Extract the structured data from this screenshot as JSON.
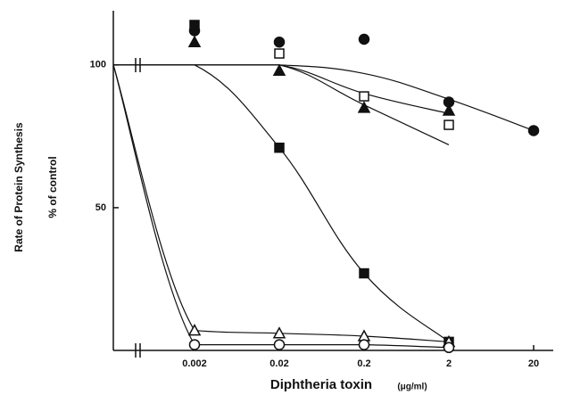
{
  "chart_data": {
    "type": "scatter",
    "y_label": "Rate of Protein Synthesis",
    "y_label_2": "% of control",
    "x_label": "Diphtheria toxin",
    "x_unit": "(μg/ml)",
    "categories": [
      null,
      "0.002",
      "0.02",
      "0.2",
      "2",
      "20"
    ],
    "ylim": [
      0,
      119
    ],
    "yticks": [
      50,
      100
    ],
    "color": "#111111",
    "series": [
      {
        "marker": "circle",
        "filled": true,
        "values": [
          null,
          112,
          108,
          109,
          87,
          77
        ]
      },
      {
        "marker": "triangle",
        "filled": true,
        "values": [
          null,
          108,
          98,
          85,
          84,
          null
        ]
      },
      {
        "marker": "square",
        "filled": false,
        "values": [
          null,
          null,
          104,
          89,
          79,
          null
        ]
      },
      {
        "marker": "square",
        "filled": true,
        "values": [
          null,
          114,
          71,
          27,
          3,
          null
        ]
      },
      {
        "marker": "triangle",
        "filled": false,
        "values": [
          null,
          7,
          6,
          5,
          3,
          null
        ]
      },
      {
        "marker": "circle",
        "filled": false,
        "values": [
          null,
          2,
          2,
          2,
          1,
          null
        ]
      }
    ],
    "curves": [
      {
        "values": [
          100,
          100,
          100,
          97,
          88,
          77
        ]
      },
      {
        "values": [
          100,
          100,
          100,
          90,
          83,
          null
        ]
      },
      {
        "values": [
          100,
          100,
          100,
          86,
          72,
          null
        ]
      },
      {
        "values": [
          100,
          100,
          71,
          27,
          3,
          null
        ]
      },
      {
        "values": [
          100,
          7,
          6,
          5,
          3,
          null
        ]
      },
      {
        "values": [
          100,
          2,
          2,
          2,
          1,
          null
        ]
      }
    ]
  }
}
